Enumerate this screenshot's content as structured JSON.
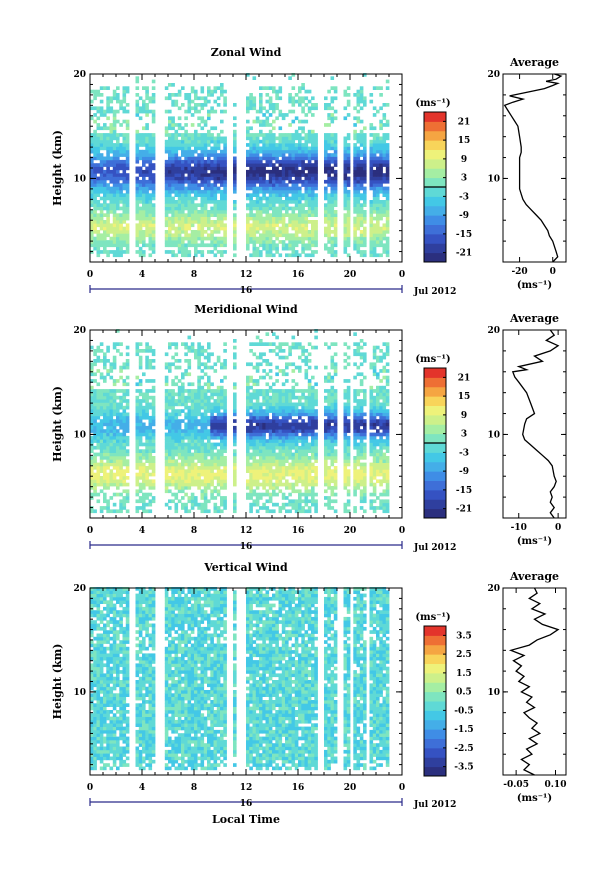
{
  "chart_data": [
    {
      "type": "heatmap",
      "title": "Zonal Wind",
      "ylabel": "Height (km)",
      "ylim": [
        2,
        20
      ],
      "y_ticks": [
        "20",
        "10"
      ],
      "y_tick_values": [
        20,
        10
      ],
      "xlim": [
        0,
        24
      ],
      "x_ticks": [
        "0",
        "4",
        "8",
        "12",
        "16",
        "20",
        "0"
      ],
      "x_tick_values": [
        0,
        4,
        8,
        12,
        16,
        20,
        24
      ],
      "day_label": "16",
      "month_label": "Jul 2012",
      "colorbar": {
        "unit": "(ms⁻¹)",
        "ticks": [
          "21",
          "15",
          "9",
          "3",
          "-3",
          "-9",
          "-15",
          "-21"
        ],
        "range": [
          -24,
          24
        ],
        "zero_line": 0
      },
      "profile": {
        "title": "Average",
        "xlabel": "(ms⁻¹)",
        "x_ticks": [
          "-20",
          "0"
        ],
        "x_tick_values": [
          -20,
          0
        ],
        "xlim": [
          -30,
          8
        ],
        "ylim": [
          2,
          20
        ],
        "y_ticks": [
          "20",
          "10"
        ],
        "y_tick_values": [
          20,
          10
        ],
        "points": [
          [
            0,
            2
          ],
          [
            3,
            2.5
          ],
          [
            2,
            3
          ],
          [
            1,
            3.5
          ],
          [
            0,
            4
          ],
          [
            -2,
            4.5
          ],
          [
            -3,
            5
          ],
          [
            -5,
            5.5
          ],
          [
            -7,
            6
          ],
          [
            -10,
            6.5
          ],
          [
            -13,
            7
          ],
          [
            -16,
            7.5
          ],
          [
            -18,
            8
          ],
          [
            -19,
            8.5
          ],
          [
            -20,
            9
          ],
          [
            -20,
            10
          ],
          [
            -20,
            11
          ],
          [
            -20,
            12
          ],
          [
            -19,
            12.5
          ],
          [
            -19,
            13
          ],
          [
            -20,
            14
          ],
          [
            -21,
            15
          ],
          [
            -23,
            15.5
          ],
          [
            -25,
            16
          ],
          [
            -27,
            16.5
          ],
          [
            -29,
            17
          ],
          [
            -24,
            17.3
          ],
          [
            -18,
            17.6
          ],
          [
            -26,
            17.9
          ],
          [
            -14,
            18.3
          ],
          [
            -5,
            18.6
          ],
          [
            0,
            18.9
          ],
          [
            3,
            19.1
          ],
          [
            -4,
            19.3
          ],
          [
            2,
            19.5
          ],
          [
            5,
            19.8
          ],
          [
            1,
            20
          ]
        ]
      }
    },
    {
      "type": "heatmap",
      "title": "Meridional Wind",
      "ylabel": "Height (km)",
      "ylim": [
        2,
        20
      ],
      "y_ticks": [
        "20",
        "10"
      ],
      "y_tick_values": [
        20,
        10
      ],
      "xlim": [
        0,
        24
      ],
      "x_ticks": [
        "0",
        "4",
        "8",
        "12",
        "16",
        "20",
        "0"
      ],
      "x_tick_values": [
        0,
        4,
        8,
        12,
        16,
        20,
        24
      ],
      "day_label": "16",
      "month_label": "Jul 2012",
      "colorbar": {
        "unit": "(ms⁻¹)",
        "ticks": [
          "21",
          "15",
          "9",
          "3",
          "-3",
          "-9",
          "-15",
          "-21"
        ],
        "range": [
          -24,
          24
        ],
        "zero_line": 0
      },
      "profile": {
        "title": "Average",
        "xlabel": "(ms⁻¹)",
        "x_ticks": [
          "-10",
          "0"
        ],
        "x_tick_values": [
          -10,
          0
        ],
        "xlim": [
          -14,
          2
        ],
        "ylim": [
          2,
          20
        ],
        "y_ticks": [
          "20",
          "10"
        ],
        "y_tick_values": [
          20,
          10
        ],
        "points": [
          [
            -1,
            2
          ],
          [
            -2,
            2.5
          ],
          [
            -1,
            3
          ],
          [
            -2,
            3.5
          ],
          [
            -1.5,
            4
          ],
          [
            -2,
            4.5
          ],
          [
            -1,
            5
          ],
          [
            -0.5,
            5.5
          ],
          [
            -1,
            6
          ],
          [
            -1.5,
            7
          ],
          [
            -2.5,
            7.5
          ],
          [
            -4,
            8
          ],
          [
            -5.5,
            8.5
          ],
          [
            -7,
            9
          ],
          [
            -8.5,
            9.5
          ],
          [
            -9,
            10
          ],
          [
            -8.5,
            11
          ],
          [
            -8,
            11.5
          ],
          [
            -6,
            12
          ],
          [
            -7,
            13
          ],
          [
            -8,
            14
          ],
          [
            -10,
            15
          ],
          [
            -11,
            15.5
          ],
          [
            -11.5,
            16
          ],
          [
            -8,
            16.2
          ],
          [
            -10,
            16.5
          ],
          [
            -4,
            17
          ],
          [
            -6,
            17.5
          ],
          [
            -2,
            18
          ],
          [
            0,
            18.5
          ],
          [
            -3,
            19
          ],
          [
            -1,
            19.5
          ],
          [
            -2,
            20
          ]
        ]
      }
    },
    {
      "type": "heatmap",
      "title": "Vertical Wind",
      "ylabel": "Height (km)",
      "xlabel": "Local Time",
      "ylim": [
        2,
        20
      ],
      "y_ticks": [
        "20",
        "10"
      ],
      "y_tick_values": [
        20,
        10
      ],
      "xlim": [
        0,
        24
      ],
      "x_ticks": [
        "0",
        "4",
        "8",
        "12",
        "16",
        "20",
        "0"
      ],
      "x_tick_values": [
        0,
        4,
        8,
        12,
        16,
        20,
        24
      ],
      "day_label": "16",
      "month_label": "Jul 2012",
      "colorbar": {
        "unit": "(ms⁻¹)",
        "ticks": [
          "3.5",
          "2.5",
          "1.5",
          "0.5",
          "-0.5",
          "-1.5",
          "-2.5",
          "-3.5"
        ],
        "range": [
          -4,
          4
        ],
        "zero_line": null
      },
      "profile": {
        "title": "Average",
        "xlabel": "(ms⁻¹)",
        "x_ticks": [
          "-0.05",
          "0.10"
        ],
        "x_tick_values": [
          -0.05,
          0.1
        ],
        "xlim": [
          -0.1,
          0.14
        ],
        "ylim": [
          2,
          20
        ],
        "y_ticks": [
          "20",
          "10"
        ],
        "y_tick_values": [
          20,
          10
        ],
        "points": [
          [
            0.02,
            2
          ],
          [
            -0.02,
            2.5
          ],
          [
            0.0,
            3
          ],
          [
            -0.03,
            3.5
          ],
          [
            0.01,
            4
          ],
          [
            -0.01,
            4.5
          ],
          [
            0.03,
            5
          ],
          [
            0.0,
            5.5
          ],
          [
            0.04,
            6
          ],
          [
            0.01,
            6.5
          ],
          [
            0.03,
            7
          ],
          [
            0.0,
            7.5
          ],
          [
            -0.02,
            8
          ],
          [
            0.02,
            8.5
          ],
          [
            -0.01,
            9
          ],
          [
            0.01,
            9.5
          ],
          [
            -0.03,
            10
          ],
          [
            0.0,
            10.5
          ],
          [
            -0.04,
            11
          ],
          [
            -0.02,
            11.5
          ],
          [
            -0.05,
            12
          ],
          [
            -0.03,
            12.5
          ],
          [
            -0.06,
            13
          ],
          [
            -0.02,
            13.5
          ],
          [
            -0.07,
            14
          ],
          [
            0.0,
            14.5
          ],
          [
            0.03,
            15
          ],
          [
            0.08,
            15.5
          ],
          [
            0.11,
            16
          ],
          [
            0.05,
            16.5
          ],
          [
            0.02,
            17
          ],
          [
            0.06,
            17.5
          ],
          [
            0.01,
            18
          ],
          [
            0.04,
            18.5
          ],
          [
            0.0,
            19
          ],
          [
            0.03,
            19.5
          ],
          [
            0.02,
            20
          ]
        ]
      }
    }
  ]
}
